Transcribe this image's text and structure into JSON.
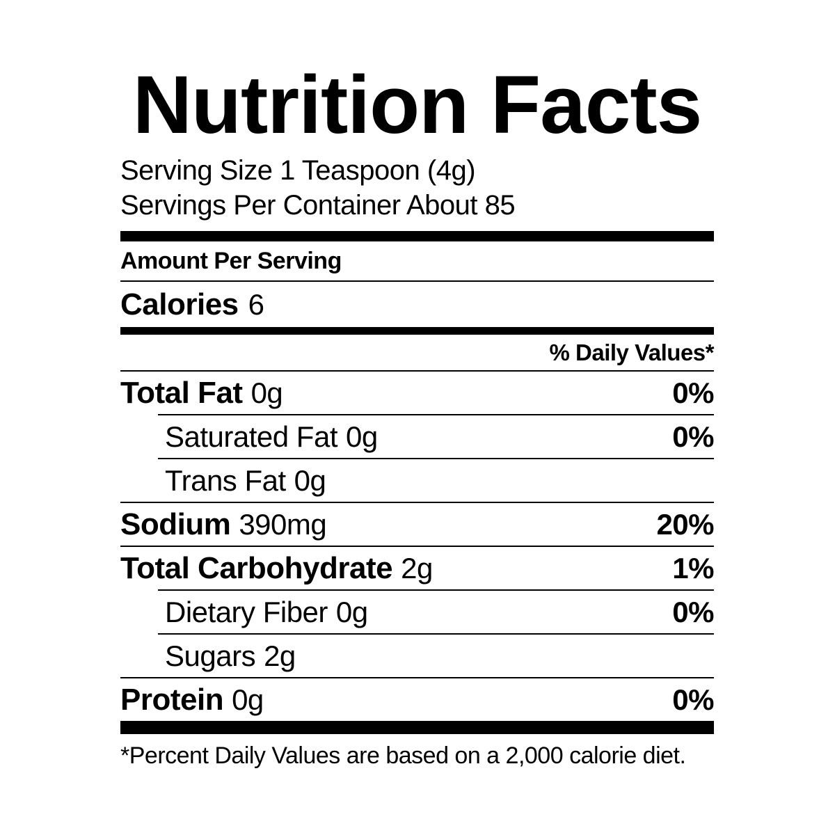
{
  "title": "Nutrition Facts",
  "serving_info": {
    "serving_size": "Serving Size 1 Teaspoon (4g)",
    "servings_per_container": "Servings Per Container About 85"
  },
  "amount_per_serving_label": "Amount Per Serving",
  "calories": {
    "label": "Calories",
    "value": "6"
  },
  "daily_values_header": "% Daily Values*",
  "nutrients": [
    {
      "name": "Total Fat",
      "amount": "0g",
      "dv": "0%",
      "bold": true,
      "indent": false
    },
    {
      "name": "Saturated Fat",
      "amount": "0g",
      "dv": "0%",
      "bold": false,
      "indent": true
    },
    {
      "name": "Trans Fat",
      "amount": "0g",
      "dv": "",
      "bold": false,
      "indent": true
    },
    {
      "name": "Sodium",
      "amount": "390mg",
      "dv": "20%",
      "bold": true,
      "indent": false
    },
    {
      "name": "Total Carbohydrate",
      "amount": "2g",
      "dv": "1%",
      "bold": true,
      "indent": false
    },
    {
      "name": "Dietary Fiber",
      "amount": "0g",
      "dv": "0%",
      "bold": false,
      "indent": true
    },
    {
      "name": "Sugars",
      "amount": "2g",
      "dv": "",
      "bold": false,
      "indent": true
    },
    {
      "name": "Protein",
      "amount": "0g",
      "dv": "0%",
      "bold": true,
      "indent": false
    }
  ],
  "footnote": "*Percent Daily Values are based on a 2,000 calorie diet.",
  "colors": {
    "background": "#ffffff",
    "text": "#000000",
    "rule": "#000000"
  }
}
